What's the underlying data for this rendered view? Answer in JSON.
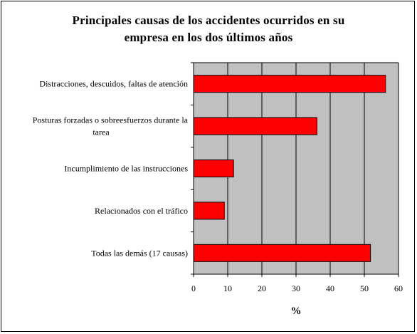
{
  "chart_data": {
    "type": "bar",
    "orientation": "horizontal",
    "title": "Principales causas de los accidentes ocurridos en su empresa en los dos últimos años",
    "title_lines": [
      "Principales causas de los accidentes ocurridos en su",
      "empresa en los dos últimos años"
    ],
    "categories": [
      "Distracciones, descuidos, faltas de atención",
      "Posturas forzadas o sobreesfuerzos durante la tarea",
      "Incumplimiento de las instrucciones",
      "Relacionados con el tráfico",
      "Todas las demás (17 causas)"
    ],
    "category_lines": [
      [
        "Distracciones, descuidos, faltas de atención"
      ],
      [
        "Posturas forzadas o sobreesfuerzos durante la",
        "tarea"
      ],
      [
        "Incumplimiento de las instrucciones"
      ],
      [
        "Relacionados con el tráfico"
      ],
      [
        "Todas las demás (17 causas)"
      ]
    ],
    "values": [
      56.2,
      36.1,
      11.7,
      9.0,
      51.8
    ],
    "xlabel": "%",
    "ylabel": "",
    "xlim": [
      0,
      60
    ],
    "xticks": [
      0,
      10,
      20,
      30,
      40,
      50,
      60
    ],
    "grid": "vertical",
    "legend": "none",
    "colors": {
      "bar": "#ff0000",
      "plot_background": "#c0c0c0",
      "gridline": "#000000"
    }
  }
}
